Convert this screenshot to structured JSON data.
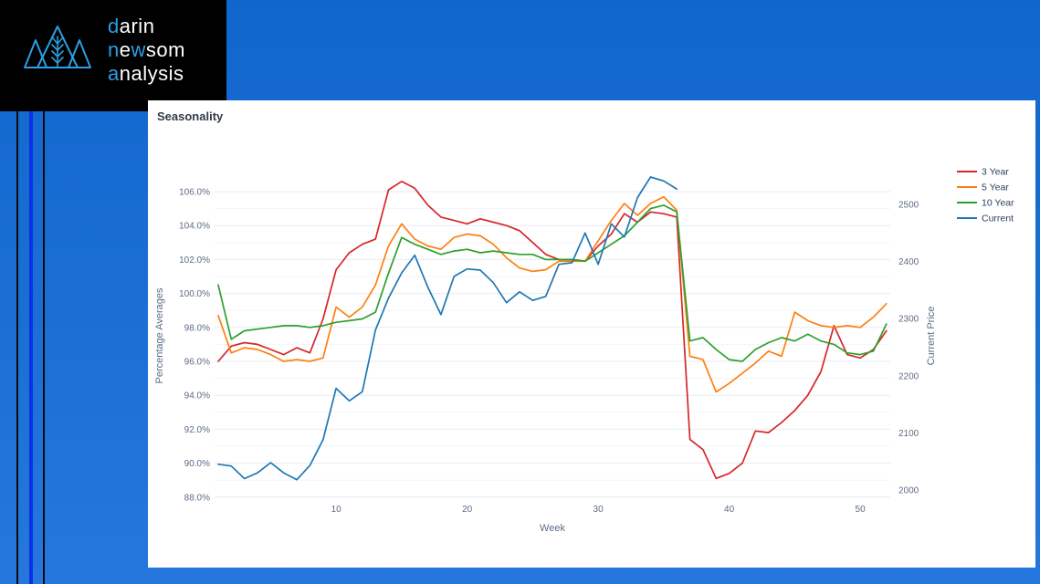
{
  "page": {
    "background_color": "#1b6fd4",
    "stripe_black_color": "#0b0b0b",
    "stripe_bright_blue_color": "#0b31e8"
  },
  "logo": {
    "box_color": "#000000",
    "accent_color": "#2b9fe3",
    "text_color": "#ffffff",
    "icon": "mountains-wheat-icon",
    "lines": [
      {
        "segments": [
          {
            "t": "d",
            "accent": true
          },
          {
            "t": "arin",
            "accent": false
          }
        ]
      },
      {
        "segments": [
          {
            "t": "n",
            "accent": true
          },
          {
            "t": "e",
            "accent": false
          },
          {
            "t": "w",
            "accent": true
          },
          {
            "t": "som",
            "accent": false
          }
        ]
      },
      {
        "segments": [
          {
            "t": "a",
            "accent": true
          },
          {
            "t": "nalysis",
            "accent": false
          }
        ]
      }
    ]
  },
  "chart": {
    "title": "Seasonality",
    "title_color": "#31394a",
    "tick_label_color": "#5d6b84",
    "axis_title_color": "#5d6b84",
    "grid_color": "#e6ebf5",
    "grid_minor_color": "#f2f5fb",
    "x_axis_title": "Week",
    "x_ticks": [
      {
        "week": 10,
        "label": "10"
      },
      {
        "week": 20,
        "label": "20"
      },
      {
        "week": 30,
        "label": "30"
      },
      {
        "week": 40,
        "label": "40"
      },
      {
        "week": 50,
        "label": "50"
      }
    ],
    "left_axis": {
      "title": "Percentage Averages",
      "ticks": [
        {
          "value": 106,
          "label": "106.0%"
        },
        {
          "value": 104,
          "label": "104.0%"
        },
        {
          "value": 102,
          "label": "102.0%"
        },
        {
          "value": 100,
          "label": "100.0%"
        },
        {
          "value": 98,
          "label": "98.0%"
        },
        {
          "value": 96,
          "label": "96.0%"
        },
        {
          "value": 94,
          "label": "94.0%"
        },
        {
          "value": 92,
          "label": "92.0%"
        },
        {
          "value": 90,
          "label": "90.0%"
        },
        {
          "value": 88,
          "label": "88.0%"
        }
      ]
    },
    "right_axis": {
      "title": "Current Price",
      "ticks": [
        {
          "value": 2500,
          "label": "2500"
        },
        {
          "value": 2400,
          "label": "2400"
        },
        {
          "value": 2300,
          "label": "2300"
        },
        {
          "value": 2200,
          "label": "2200"
        },
        {
          "value": 2100,
          "label": "2100"
        },
        {
          "value": 2000,
          "label": "2000"
        }
      ]
    }
  },
  "chart_data": {
    "type": "line",
    "title": "Seasonality",
    "xlabel": "Week",
    "x_unit": "week_number",
    "x_range": [
      1,
      52
    ],
    "left_axis": {
      "label": "Percentage Averages",
      "unit": "%",
      "range": [
        88,
        106
      ],
      "grid": true
    },
    "right_axis": {
      "label": "Current Price",
      "range": [
        2000,
        2500
      ],
      "grid": false
    },
    "legend_position": "right",
    "series": [
      {
        "name": "3 Year",
        "color": "#d62728",
        "axis": "left",
        "start_week": 1,
        "values": [
          96.0,
          96.9,
          97.1,
          97.0,
          96.7,
          96.4,
          96.8,
          96.5,
          98.5,
          101.4,
          102.4,
          102.9,
          103.2,
          106.1,
          106.6,
          106.2,
          105.2,
          104.5,
          104.3,
          104.1,
          104.4,
          104.2,
          104.0,
          103.7,
          103.0,
          102.3,
          102.0,
          102.0,
          101.9,
          102.8,
          103.5,
          104.7,
          104.2,
          104.8,
          104.7,
          104.5,
          91.4,
          90.8,
          89.1,
          89.4,
          90.0,
          91.9,
          91.8,
          92.4,
          93.1,
          94.0,
          95.4,
          98.1,
          96.4,
          96.2,
          96.7,
          97.8
        ]
      },
      {
        "name": "5 Year",
        "color": "#ff7f0e",
        "axis": "left",
        "start_week": 1,
        "values": [
          98.7,
          96.5,
          96.8,
          96.7,
          96.4,
          96.0,
          96.1,
          96.0,
          96.2,
          99.2,
          98.6,
          99.2,
          100.5,
          102.8,
          104.1,
          103.2,
          102.8,
          102.6,
          103.3,
          103.5,
          103.4,
          102.9,
          102.1,
          101.5,
          101.3,
          101.4,
          101.9,
          101.9,
          101.9,
          103.1,
          104.3,
          105.3,
          104.6,
          105.3,
          105.7,
          104.9,
          96.3,
          96.1,
          94.2,
          94.7,
          95.3,
          95.9,
          96.6,
          96.3,
          98.9,
          98.4,
          98.1,
          98.0,
          98.1,
          98.0,
          98.6,
          99.4
        ]
      },
      {
        "name": "10 Year",
        "color": "#2ca02c",
        "axis": "left",
        "start_week": 1,
        "values": [
          100.5,
          97.3,
          97.8,
          97.9,
          98.0,
          98.1,
          98.1,
          98.0,
          98.1,
          98.3,
          98.4,
          98.5,
          98.9,
          101.2,
          103.3,
          102.9,
          102.6,
          102.3,
          102.5,
          102.6,
          102.4,
          102.5,
          102.4,
          102.3,
          102.3,
          102.0,
          102.0,
          102.0,
          101.9,
          102.4,
          102.9,
          103.4,
          104.2,
          105.0,
          105.2,
          104.8,
          97.2,
          97.4,
          96.7,
          96.1,
          96.0,
          96.7,
          97.1,
          97.4,
          97.2,
          97.6,
          97.2,
          97.0,
          96.5,
          96.4,
          96.6,
          98.2
        ]
      },
      {
        "name": "Current",
        "color": "#1f77b4",
        "axis": "right",
        "start_week": 1,
        "values": [
          2045,
          2042,
          2020,
          2030,
          2048,
          2030,
          2018,
          2043,
          2088,
          2178,
          2156,
          2172,
          2280,
          2336,
          2380,
          2411,
          2355,
          2307,
          2374,
          2387,
          2385,
          2363,
          2328,
          2347,
          2332,
          2339,
          2395,
          2398,
          2450,
          2395,
          2466,
          2443,
          2512,
          2548,
          2541,
          2527
        ]
      }
    ]
  }
}
